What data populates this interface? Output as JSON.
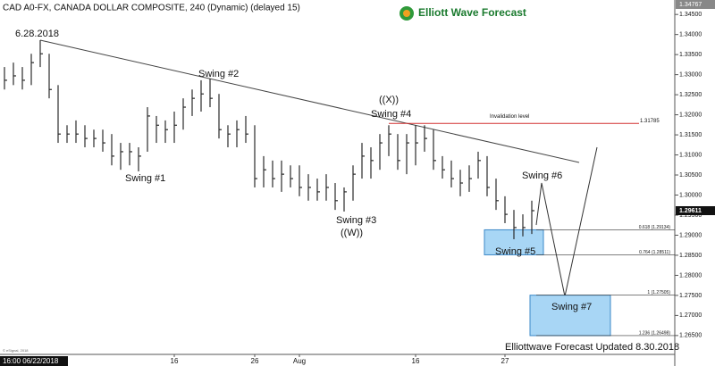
{
  "chart_data": {
    "type": "hlc",
    "title": "CAD A0-FX, CANADA DOLLAR COMPOSITE, 240 (Dynamic) (delayed 15)",
    "logo": "Elliott Wave Forecast",
    "footer": "Elliottwave Forecast Updated 8.30.2018",
    "copyright": "© eSignal, 2018",
    "color": "#2a2a2a",
    "categories": [
      "16:00 06/22/2018",
      null,
      null,
      null,
      null,
      null,
      null,
      null,
      null,
      null,
      null,
      null,
      null,
      null,
      null,
      null,
      null,
      null,
      null,
      "16",
      null,
      null,
      null,
      null,
      null,
      null,
      null,
      null,
      "26",
      null,
      null,
      null,
      null,
      "Aug",
      null,
      null,
      null,
      null,
      null,
      null,
      null,
      null,
      null,
      null,
      null,
      null,
      "16",
      null,
      null,
      null,
      null,
      null,
      null,
      null,
      null,
      null,
      "27",
      null,
      null,
      null
    ],
    "high": [
      1.3319,
      1.333,
      1.3319,
      1.3352,
      1.3386,
      1.3352,
      1.3274,
      1.3174,
      1.3186,
      1.3174,
      1.3163,
      1.3163,
      1.3152,
      1.313,
      1.313,
      1.3119,
      1.3219,
      1.3197,
      1.3186,
      1.3208,
      1.3241,
      1.3263,
      1.3286,
      1.329,
      1.3252,
      1.3174,
      1.3186,
      1.3197,
      1.3174,
      1.3097,
      1.3086,
      1.3086,
      1.3074,
      1.3074,
      1.3052,
      1.3041,
      1.3052,
      1.303,
      1.3019,
      1.3074,
      1.313,
      1.3119,
      1.3152,
      1.3174,
      1.3152,
      1.3152,
      1.3174,
      1.3174,
      1.3163,
      1.3097,
      1.3086,
      1.3063,
      1.3074,
      1.3108,
      1.3097,
      1.3041,
      1.2997,
      1.2963,
      1.2952,
      1.2986
    ],
    "low": [
      1.3263,
      1.3274,
      1.3263,
      1.3274,
      1.3319,
      1.3241,
      1.313,
      1.313,
      1.313,
      1.3119,
      1.3119,
      1.3108,
      1.3074,
      1.3063,
      1.3074,
      1.3059,
      1.3108,
      1.313,
      1.313,
      1.313,
      1.3163,
      1.3197,
      1.3208,
      1.3219,
      1.3141,
      1.3119,
      1.3119,
      1.313,
      1.3019,
      1.3019,
      1.3019,
      1.3008,
      1.3019,
      1.2997,
      1.2986,
      1.2986,
      1.2986,
      1.2963,
      1.2959,
      1.2986,
      1.3041,
      1.3041,
      1.3063,
      1.3097,
      1.3063,
      1.3052,
      1.3074,
      1.3108,
      1.3063,
      1.3041,
      1.3019,
      1.2997,
      1.3008,
      1.3041,
      1.2997,
      1.2963,
      1.293,
      1.289,
      1.2897,
      1.2903
    ],
    "close": [
      1.3286,
      1.3297,
      1.3286,
      1.333,
      1.3352,
      1.3263,
      1.3152,
      1.3152,
      1.3152,
      1.3141,
      1.3141,
      1.313,
      1.3097,
      1.3108,
      1.3108,
      1.3097,
      1.3197,
      1.3174,
      1.3163,
      1.3174,
      1.3219,
      1.3241,
      1.3252,
      1.3241,
      1.3163,
      1.3152,
      1.3163,
      1.3152,
      1.3041,
      1.3063,
      1.3041,
      1.3052,
      1.3041,
      1.3019,
      1.3019,
      1.3008,
      1.3019,
      1.2986,
      1.3008,
      1.3052,
      1.3097,
      1.3086,
      1.313,
      1.3152,
      1.3086,
      1.313,
      1.313,
      1.3141,
      1.3086,
      1.3063,
      1.3041,
      1.303,
      1.3041,
      1.3086,
      1.3019,
      1.2986,
      1.2952,
      1.2919,
      1.2919,
      1.29611
    ],
    "last_price": 1.29611,
    "high_marker": 1.34767,
    "ylim": [
      1.2603,
      1.3486
    ],
    "yticks": [
      {
        "value": 1.345,
        "label": "1.34500"
      },
      {
        "value": 1.34,
        "label": "1.34000"
      },
      {
        "value": 1.335,
        "label": "1.33500"
      },
      {
        "value": 1.33,
        "label": "1.33000"
      },
      {
        "value": 1.325,
        "label": "1.32500"
      },
      {
        "value": 1.32,
        "label": "1.32000"
      },
      {
        "value": 1.315,
        "label": "1.31500"
      },
      {
        "value": 1.31,
        "label": "1.31000"
      },
      {
        "value": 1.305,
        "label": "1.30500"
      },
      {
        "value": 1.3,
        "label": "1.30000"
      },
      {
        "value": 1.295,
        "label": "1.29500"
      },
      {
        "value": 1.29,
        "label": "1.29000"
      },
      {
        "value": 1.285,
        "label": "1.28500"
      },
      {
        "value": 1.28,
        "label": "1.28000"
      },
      {
        "value": 1.275,
        "label": "1.27500"
      },
      {
        "value": 1.27,
        "label": "1.27000"
      },
      {
        "value": 1.265,
        "label": "1.26500"
      }
    ],
    "invalidation": {
      "value": 1.31785,
      "label": "Invalidation level"
    },
    "fib_levels": [
      {
        "value": 1.29134,
        "label": "0.618 (1.29134)"
      },
      {
        "value": 1.28511,
        "label": "0.764 (1.28511)"
      },
      {
        "value": 1.27505,
        "label": "1 (1.27505)"
      },
      {
        "value": 1.26498,
        "label": "1.236 (1.26498)"
      }
    ],
    "wave_labels": [
      "6.28.2018",
      "Swing #1",
      "Swing #2",
      "Swing #3",
      "((W))",
      "((X))",
      "Swing #4",
      "Swing #5",
      "Swing #6",
      "Swing #7"
    ]
  }
}
